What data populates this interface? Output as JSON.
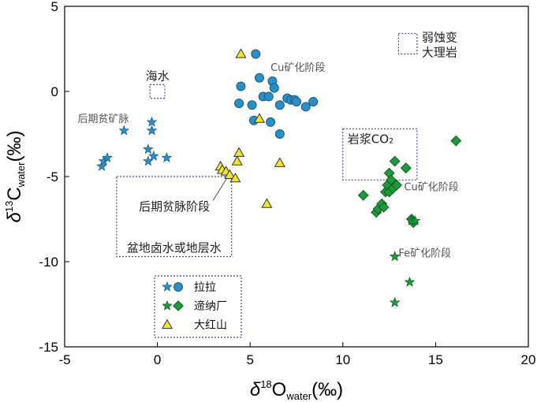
{
  "colors": {
    "lala": "#2b8fc7",
    "lala_stroke": "#1a5a80",
    "dixiechang": "#1e9a3c",
    "dixiechang_stroke": "#0e5a22",
    "dahongshan": "#f2e433",
    "dahongshan_stroke": "#333333",
    "box_stroke": "#4a4a7a"
  },
  "chart_data": {
    "type": "scatter",
    "xlim": [
      -5,
      20
    ],
    "ylim": [
      -15,
      5
    ],
    "x_ticks": [
      -5,
      0,
      5,
      10,
      15,
      20
    ],
    "y_ticks": [
      5,
      0,
      -5,
      -10,
      -15
    ],
    "x_tick_labels": [
      "-5",
      "0",
      "5",
      "10",
      "15",
      "20"
    ],
    "y_tick_labels": [
      "5",
      "0",
      "-5",
      "-10",
      "-15"
    ],
    "xlabel": {
      "prefix": "δ",
      "sup": "18",
      "main": "O",
      "sub": "water",
      "unit": "(‰)"
    },
    "ylabel": {
      "prefix": "δ",
      "sup": "13",
      "main": "C",
      "sub": "water",
      "unit": "(‰)"
    },
    "series": [
      {
        "name": "拉拉",
        "marker": "star",
        "color_key": "lala",
        "points": [
          [
            -3.0,
            -4.4
          ],
          [
            -2.9,
            -4.1
          ],
          [
            -2.7,
            -3.9
          ],
          [
            -1.8,
            -2.3
          ],
          [
            -0.5,
            -4.1
          ],
          [
            -0.5,
            -3.4
          ],
          [
            -0.3,
            -2.3
          ],
          [
            -0.3,
            -1.8
          ],
          [
            -0.2,
            -3.8
          ],
          [
            0.5,
            -3.9
          ]
        ]
      },
      {
        "name": "拉拉",
        "marker": "circle",
        "color_key": "lala",
        "points": [
          [
            4.4,
            -0.7
          ],
          [
            4.5,
            0.3
          ],
          [
            5.1,
            -0.8
          ],
          [
            5.2,
            -1.7
          ],
          [
            5.3,
            2.2
          ],
          [
            5.5,
            0.8
          ],
          [
            5.7,
            -0.3
          ],
          [
            6.0,
            -0.3
          ],
          [
            6.1,
            -1.8
          ],
          [
            6.2,
            0.6
          ],
          [
            6.3,
            0.2
          ],
          [
            6.6,
            -2.5
          ],
          [
            6.6,
            -0.8
          ],
          [
            7.0,
            -0.4
          ],
          [
            7.2,
            -0.5
          ],
          [
            7.4,
            -0.5
          ],
          [
            7.5,
            -0.6
          ],
          [
            8.0,
            -0.9
          ],
          [
            8.4,
            -0.6
          ]
        ]
      },
      {
        "name": "遆纳厂",
        "marker": "diamond",
        "color_key": "dixiechang",
        "points": [
          [
            11.1,
            -6.1
          ],
          [
            11.8,
            -7.1
          ],
          [
            11.9,
            -6.9
          ],
          [
            12.1,
            -6.6
          ],
          [
            12.2,
            -6.8
          ],
          [
            12.3,
            -5.9
          ],
          [
            12.4,
            -5.5
          ],
          [
            12.5,
            -5.9
          ],
          [
            12.5,
            -4.8
          ],
          [
            12.6,
            -5.2
          ],
          [
            12.7,
            -5.7
          ],
          [
            12.8,
            -4.1
          ],
          [
            12.9,
            -5.5
          ],
          [
            13.4,
            -4.5
          ],
          [
            13.7,
            -7.5
          ],
          [
            13.8,
            -7.7
          ],
          [
            16.1,
            -2.9
          ]
        ]
      },
      {
        "name": "遆纳厂",
        "marker": "star",
        "color_key": "dixiechang",
        "points": [
          [
            12.8,
            -9.7
          ],
          [
            12.8,
            -12.4
          ],
          [
            13.6,
            -11.2
          ],
          [
            13.7,
            -7.6
          ],
          [
            13.9,
            -7.6
          ]
        ]
      },
      {
        "name": "大红山",
        "marker": "triangle",
        "color_key": "dahongshan",
        "points": [
          [
            3.4,
            -4.4
          ],
          [
            3.5,
            -4.6
          ],
          [
            3.7,
            -4.7
          ],
          [
            3.9,
            -4.9
          ],
          [
            4.2,
            -5.1
          ],
          [
            4.3,
            -4.1
          ],
          [
            4.4,
            -3.6
          ],
          [
            4.5,
            2.2
          ],
          [
            5.5,
            -1.6
          ],
          [
            5.9,
            -6.6
          ],
          [
            6.6,
            -4.2
          ]
        ]
      }
    ],
    "regions": [
      {
        "label": "弱蚀变\n大理岩",
        "x": [
          13.0,
          14.0
        ],
        "y": [
          2.2,
          3.4
        ]
      },
      {
        "label": "海水",
        "x": [
          -0.4,
          0.4
        ],
        "y": [
          -0.4,
          0.4
        ]
      },
      {
        "label": "岩浆CO₂",
        "x": [
          10.0,
          14.0
        ],
        "y": [
          -5.2,
          -2.2
        ]
      },
      {
        "label": "盆地卤水或地层水",
        "x": [
          -2.2,
          4.0
        ],
        "y": [
          -9.7,
          -5.0
        ]
      }
    ],
    "annotations": [
      {
        "text": "Cu矿化阶段",
        "x": 6.1,
        "y": 1.2
      },
      {
        "text": "后期贫矿脉",
        "x": -4.3,
        "y": -1.8
      },
      {
        "text": "Cu矿化阶段",
        "x": 13.3,
        "y": -5.8
      },
      {
        "text": "Fe矿化阶段",
        "x": 13.0,
        "y": -9.7
      },
      {
        "text": "后期贫脉阶段",
        "x": -1.0,
        "y": -7.0
      }
    ],
    "legend": {
      "placement": "bottom-left",
      "entries": [
        {
          "label": "拉拉",
          "markers": [
            "star",
            "circle"
          ],
          "color_key": "lala"
        },
        {
          "label": "遆纳厂",
          "markers": [
            "star",
            "diamond"
          ],
          "color_key": "dixiechang"
        },
        {
          "label": "大红山",
          "markers": [
            "triangle"
          ],
          "color_key": "dahongshan"
        }
      ]
    },
    "grid": false
  }
}
